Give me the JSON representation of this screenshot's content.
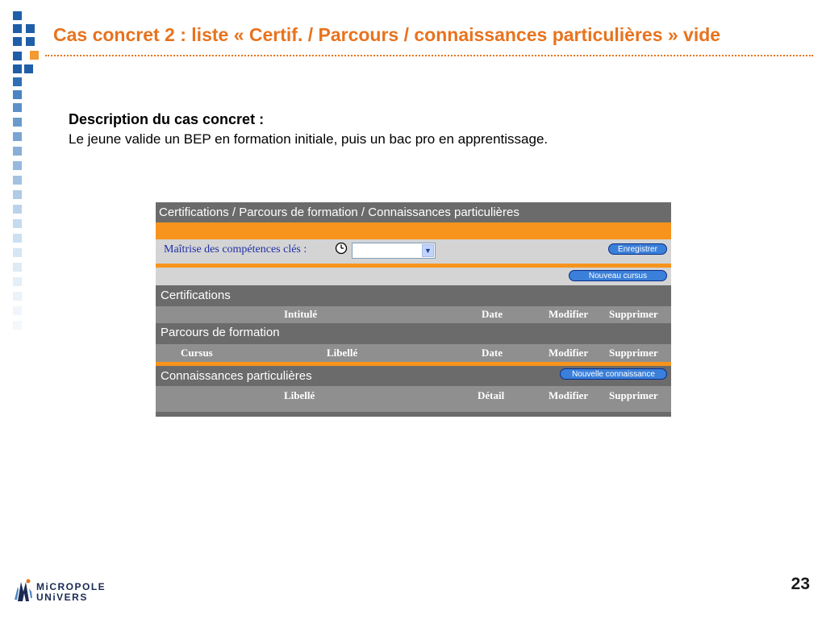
{
  "slide": {
    "title": "Cas concret 2 : liste « Certif. / Parcours / connaissances particulières » vide",
    "page_number": "23"
  },
  "description": {
    "heading": "Description du cas concret :",
    "text": "Le jeune valide un BEP en formation initiale, puis un bac pro en apprentissage."
  },
  "form": {
    "header": "Certifications / Parcours de formation / Connaissances particulières",
    "skills_label": "Maîtrise des compétences clés :",
    "skills_select_value": "",
    "save_button": "Enregistrer",
    "new_course_button": "Nouveau cursus",
    "certifications": {
      "title": "Certifications",
      "columns": [
        "Intitulé",
        "Date",
        "Modifier",
        "Supprimer"
      ]
    },
    "parcours": {
      "title": "Parcours de formation",
      "columns": [
        "Cursus",
        "Libellé",
        "Date",
        "Modifier",
        "Supprimer"
      ]
    },
    "connaissances": {
      "title": "Connaissances particulières",
      "new_button": "Nouvelle connaissance",
      "columns": [
        "Libellé",
        "Détail",
        "Modifier",
        "Supprimer"
      ]
    }
  },
  "logo": {
    "line1": "MiCROPOLE",
    "line2": "UNiVERS"
  },
  "colors": {
    "title_orange": "#e8731e",
    "panel_orange": "#f7941d",
    "button_blue": "#3a7fd9"
  }
}
